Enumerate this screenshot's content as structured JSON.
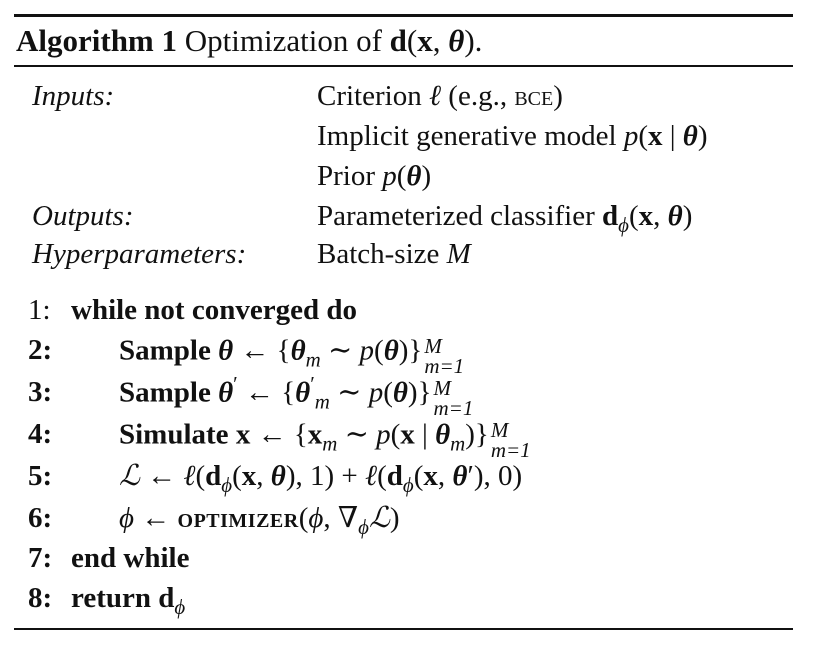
{
  "algorithm": {
    "caption_label": "Algorithm 1",
    "caption_text": "Optimization of d(x, θ)."
  },
  "io": [
    {
      "key": "Inputs:",
      "value": "Criterion ℓ (e.g., BCE)"
    },
    {
      "key": "",
      "value": "Implicit generative model p(x | θ)"
    },
    {
      "key": "",
      "value": "Prior p(θ)"
    },
    {
      "key": "Outputs:",
      "value": "Parameterized classifier dϕ(x, θ)"
    },
    {
      "key": "Hyperparameters:",
      "value": "Batch-size M"
    }
  ],
  "steps": [
    {
      "num": "1:",
      "keyword": "while not converged do",
      "text": ""
    },
    {
      "num": "2:",
      "keyword": "Sample",
      "text": "θ ← {θm ∼ p(θ)}"
    },
    {
      "num": "3:",
      "keyword": "Sample",
      "text": "θ′ ← {θ′m ∼ p(θ)}"
    },
    {
      "num": "4:",
      "keyword": "Simulate",
      "text": "x ← {xm ∼ p(x | θm)}"
    },
    {
      "num": "5:",
      "keyword": "",
      "text": "ℒ ← ℓ(dϕ(x, θ), 1) + ℓ(dϕ(x, θ′), 0)"
    },
    {
      "num": "6:",
      "keyword": "",
      "text": "ϕ ← OPTIMIZER(ϕ, ∇ϕℒ)"
    },
    {
      "num": "7:",
      "keyword": "end while",
      "text": ""
    },
    {
      "num": "8:",
      "keyword": "return",
      "text": "dϕ"
    }
  ],
  "bounds": {
    "upper": "M",
    "lower": "m=1"
  }
}
